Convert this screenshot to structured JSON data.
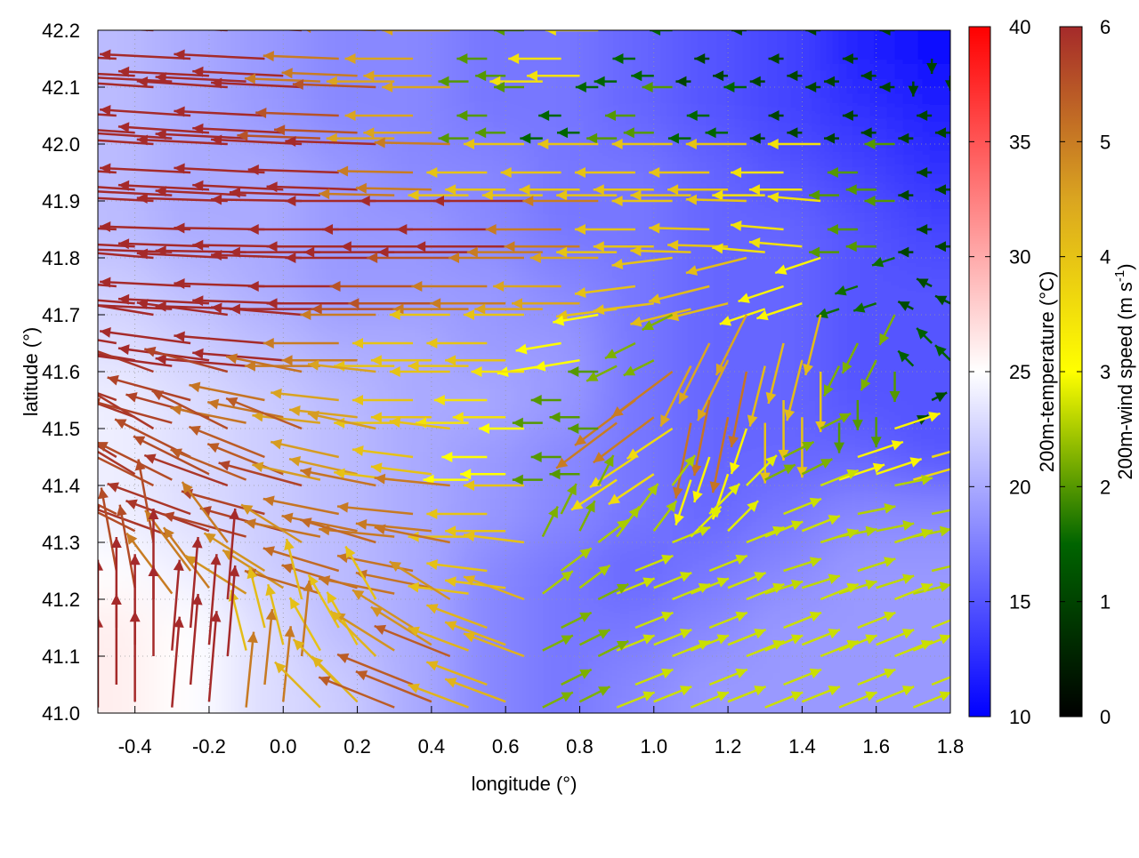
{
  "chart_data": {
    "type": "heatmap",
    "overlay": "vector-field",
    "xlabel": "longitude (°)",
    "ylabel": "latitude (°)",
    "xlim": [
      -0.5,
      1.8
    ],
    "ylim": [
      41.0,
      42.2
    ],
    "xticks": [
      "-0.4",
      "-0.2",
      "0.0",
      "0.2",
      "0.4",
      "0.6",
      "0.8",
      "1.0",
      "1.2",
      "1.4",
      "1.6",
      "1.8"
    ],
    "yticks": [
      "41.0",
      "41.1",
      "41.2",
      "41.3",
      "41.4",
      "41.5",
      "41.6",
      "41.7",
      "41.8",
      "41.9",
      "42.0",
      "42.1",
      "42.2"
    ],
    "grid": true,
    "lon": [
      -0.45,
      -0.25,
      -0.05,
      0.15,
      0.35,
      0.55,
      0.75,
      0.95,
      1.15,
      1.35,
      1.55,
      1.75
    ],
    "lat": [
      42.15,
      42.05,
      41.95,
      41.85,
      41.75,
      41.65,
      41.55,
      41.45,
      41.35,
      41.25,
      41.15,
      41.05
    ],
    "temperature": [
      [
        21,
        20,
        19,
        18,
        18,
        17,
        17,
        16,
        15,
        14,
        12,
        11
      ],
      [
        21,
        20,
        19,
        18,
        18,
        17,
        17,
        16,
        15,
        14,
        13,
        12
      ],
      [
        21,
        20,
        20,
        19,
        18,
        18,
        17,
        17,
        16,
        15,
        14,
        13
      ],
      [
        21,
        20,
        20,
        19,
        19,
        18,
        17,
        17,
        16,
        16,
        15,
        14
      ],
      [
        22,
        21,
        20,
        19,
        19,
        19,
        18,
        17,
        16,
        16,
        15,
        15
      ],
      [
        23,
        22,
        21,
        20,
        20,
        19,
        19,
        17,
        16,
        16,
        15,
        15
      ],
      [
        24,
        23,
        22,
        21,
        20,
        20,
        19,
        17,
        16,
        16,
        15,
        15
      ],
      [
        24,
        23,
        22,
        21,
        20,
        19,
        18,
        17,
        16,
        16,
        16,
        15
      ],
      [
        24,
        23,
        22,
        21,
        20,
        19,
        18,
        17,
        16,
        17,
        18,
        18
      ],
      [
        25,
        24,
        22,
        21,
        20,
        18,
        17,
        16,
        17,
        18,
        19,
        19
      ],
      [
        26,
        25,
        23,
        21,
        20,
        18,
        17,
        17,
        18,
        19,
        19,
        19
      ],
      [
        26,
        25,
        23,
        22,
        20,
        18,
        17,
        18,
        19,
        19,
        19,
        19
      ]
    ],
    "wind_uv": [
      [
        [
          -6,
          0.3
        ],
        [
          -6,
          0.3
        ],
        [
          -6,
          0.3
        ],
        [
          -5,
          0.2
        ],
        [
          -4.5,
          0
        ],
        [
          -2,
          0
        ],
        [
          -3.5,
          0
        ],
        [
          -1.5,
          0
        ],
        [
          -1,
          0
        ],
        [
          -1,
          0
        ],
        [
          -1,
          0
        ],
        [
          0,
          -1
        ]
      ],
      [
        [
          -6,
          0.4
        ],
        [
          -6,
          0.4
        ],
        [
          -6,
          0.3
        ],
        [
          -5.5,
          0.2
        ],
        [
          -4.5,
          0
        ],
        [
          -2,
          0
        ],
        [
          -1.5,
          0
        ],
        [
          -2,
          0
        ],
        [
          -1.5,
          0
        ],
        [
          -1,
          0
        ],
        [
          -1,
          0
        ],
        [
          -1,
          0
        ]
      ],
      [
        [
          -6,
          0.4
        ],
        [
          -6,
          0.3
        ],
        [
          -6,
          0.3
        ],
        [
          -6,
          0.2
        ],
        [
          -5,
          0.1
        ],
        [
          -4,
          0
        ],
        [
          -4,
          0
        ],
        [
          -4,
          0
        ],
        [
          -4,
          0
        ],
        [
          -3.5,
          0
        ],
        [
          -2,
          0
        ],
        [
          -1,
          0
        ]
      ],
      [
        [
          -6,
          0.3
        ],
        [
          -6,
          0.2
        ],
        [
          -6,
          0.1
        ],
        [
          -6,
          0
        ],
        [
          -6,
          0
        ],
        [
          -6,
          0
        ],
        [
          -5,
          0
        ],
        [
          -4,
          0
        ],
        [
          -4,
          0.1
        ],
        [
          -3.5,
          0.3
        ],
        [
          -2,
          0
        ],
        [
          -1,
          0
        ]
      ],
      [
        [
          -6,
          0.5
        ],
        [
          -6,
          0.3
        ],
        [
          -6,
          0.2
        ],
        [
          -6,
          0
        ],
        [
          -5.5,
          0
        ],
        [
          -5,
          0
        ],
        [
          -4.5,
          0
        ],
        [
          -4,
          -0.5
        ],
        [
          -4,
          -1
        ],
        [
          -3,
          -1
        ],
        [
          -1.5,
          -0.5
        ],
        [
          -1,
          0.5
        ]
      ],
      [
        [
          -6,
          1
        ],
        [
          -6,
          0.8
        ],
        [
          -6,
          0.5
        ],
        [
          -5,
          0
        ],
        [
          -4,
          0
        ],
        [
          -4,
          0
        ],
        [
          -3,
          -0.5
        ],
        [
          -2,
          -1
        ],
        [
          -2,
          -4
        ],
        [
          -1,
          -4
        ],
        [
          -1,
          -2
        ],
        [
          -1,
          1
        ]
      ],
      [
        [
          -5.5,
          2
        ],
        [
          -5.5,
          1.5
        ],
        [
          -5,
          1
        ],
        [
          -4.5,
          0.5
        ],
        [
          -4,
          0
        ],
        [
          -3.5,
          0
        ],
        [
          -2,
          0
        ],
        [
          -4,
          -3
        ],
        [
          -1,
          -5
        ],
        [
          0,
          -4
        ],
        [
          0,
          -2
        ],
        [
          1,
          0.5
        ]
      ],
      [
        [
          -5,
          3
        ],
        [
          -5,
          2.5
        ],
        [
          -5,
          2
        ],
        [
          -4.5,
          1
        ],
        [
          -4,
          0.5
        ],
        [
          -3,
          0
        ],
        [
          -2,
          0
        ],
        [
          -3,
          -2
        ],
        [
          -1,
          -3
        ],
        [
          2,
          1
        ],
        [
          3,
          1
        ],
        [
          3.5,
          1
        ]
      ],
      [
        [
          -5,
          2.5
        ],
        [
          -5.5,
          2
        ],
        [
          -5.5,
          1.5
        ],
        [
          -5,
          1
        ],
        [
          -5,
          0.5
        ],
        [
          -4,
          0
        ],
        [
          1,
          2
        ],
        [
          1.5,
          2
        ],
        [
          2,
          2
        ],
        [
          2.5,
          1
        ],
        [
          2.5,
          0.5
        ],
        [
          2.5,
          0.5
        ]
      ],
      [
        [
          -1,
          5.5
        ],
        [
          -3,
          4
        ],
        [
          -4,
          2.5
        ],
        [
          -5,
          1.5
        ],
        [
          -5,
          1
        ],
        [
          -4,
          0.5
        ],
        [
          2,
          1.5
        ],
        [
          2.5,
          1
        ],
        [
          2.5,
          1
        ],
        [
          2.5,
          0.8
        ],
        [
          2.5,
          0.8
        ],
        [
          2.5,
          0.6
        ]
      ],
      [
        [
          0,
          6
        ],
        [
          0.5,
          6
        ],
        [
          -1,
          4
        ],
        [
          -2,
          3.5
        ],
        [
          -4,
          2.5
        ],
        [
          -4,
          1.5
        ],
        [
          2,
          1
        ],
        [
          2.5,
          1
        ],
        [
          2.5,
          1
        ],
        [
          2.5,
          1
        ],
        [
          2.5,
          1
        ],
        [
          2.5,
          1
        ]
      ],
      [
        [
          0,
          6
        ],
        [
          0.5,
          6
        ],
        [
          0.5,
          5
        ],
        [
          -3,
          3
        ],
        [
          -5,
          2
        ],
        [
          -4,
          1.5
        ],
        [
          2,
          1
        ],
        [
          2.5,
          1
        ],
        [
          2.5,
          1
        ],
        [
          2.5,
          1
        ],
        [
          2.5,
          1
        ],
        [
          2.5,
          1
        ]
      ]
    ],
    "colorbars": [
      {
        "label": "200m-temperature (°C)",
        "range": [
          10,
          40
        ],
        "ticks": [
          "10",
          "15",
          "20",
          "25",
          "30",
          "35",
          "40"
        ],
        "colors": [
          "#0000ff",
          "#ffffff",
          "#ff0000"
        ]
      },
      {
        "label": "200m-wind speed (m s",
        "label_sup": "-1",
        "label_end": ")",
        "range": [
          0,
          6
        ],
        "ticks": [
          "0",
          "1",
          "2",
          "3",
          "4",
          "5",
          "6"
        ],
        "colors": [
          "#000000",
          "#006400",
          "#ffff00",
          "#daa520",
          "#a52a2a"
        ]
      }
    ]
  }
}
